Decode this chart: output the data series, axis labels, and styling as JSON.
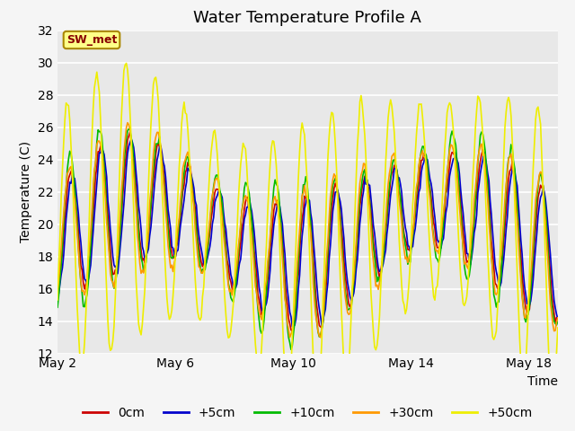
{
  "title": "Water Temperature Profile A",
  "xlabel": "Time",
  "ylabel": "Temperature (C)",
  "ylim": [
    12,
    32
  ],
  "xlim": [
    0,
    17
  ],
  "yticks": [
    12,
    14,
    16,
    18,
    20,
    22,
    24,
    26,
    28,
    30,
    32
  ],
  "xtick_positions": [
    0,
    4,
    8,
    12,
    16
  ],
  "xtick_labels": [
    "May 2",
    "May 6",
    "May 10",
    "May 14",
    "May 18"
  ],
  "series_labels": [
    "0cm",
    "+5cm",
    "+10cm",
    "+30cm",
    "+50cm"
  ],
  "series_colors": [
    "#cc0000",
    "#0000cc",
    "#00bb00",
    "#ff9900",
    "#eeee00"
  ],
  "line_widths": [
    1.2,
    1.2,
    1.2,
    1.2,
    1.2
  ],
  "annotation_text": "SW_met",
  "bg_color": "#ebebeb",
  "title_fontsize": 13,
  "axis_fontsize": 10,
  "legend_fontsize": 10
}
